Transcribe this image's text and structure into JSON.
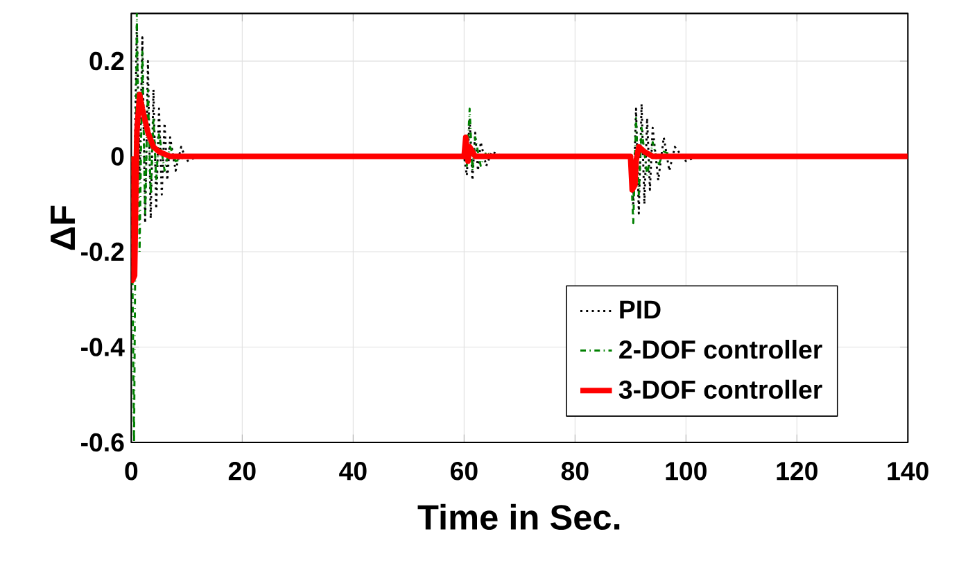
{
  "chart_data": {
    "type": "line",
    "xlabel": "Time in Sec.",
    "ylabel": "ΔF",
    "xlim": [
      0,
      140
    ],
    "ylim": [
      -0.6,
      0.3
    ],
    "xticks": [
      0,
      20,
      40,
      60,
      80,
      100,
      120,
      140
    ],
    "yticks": [
      -0.6,
      -0.4,
      -0.2,
      0,
      0.2
    ],
    "grid": true,
    "legend": "bottom right",
    "series": [
      {
        "name": "PID",
        "color": "#000000",
        "line_style": "dotted",
        "x": [
          0,
          0.5,
          1,
          1.5,
          2,
          2.5,
          3,
          3.5,
          4,
          4.5,
          5,
          5.5,
          6,
          6.5,
          7,
          8,
          9,
          10,
          12,
          60,
          60.5,
          61,
          61.5,
          62,
          62.5,
          63,
          64,
          65,
          67,
          90,
          90.5,
          91,
          91.5,
          92,
          92.5,
          93,
          93.5,
          94,
          95,
          96,
          97,
          98,
          100,
          102,
          140
        ],
        "values": [
          0,
          -0.1,
          0.28,
          -0.05,
          0.25,
          -0.14,
          0.2,
          -0.13,
          0.14,
          -0.11,
          0.1,
          -0.08,
          0.07,
          -0.05,
          0.04,
          -0.03,
          0.02,
          -0.01,
          0,
          0,
          -0.04,
          0.08,
          -0.05,
          0.05,
          -0.03,
          0.03,
          -0.02,
          0.01,
          0,
          0,
          -0.1,
          0.1,
          -0.12,
          0.11,
          -0.1,
          0.08,
          -0.07,
          0.06,
          -0.05,
          0.04,
          -0.03,
          0.02,
          -0.01,
          0,
          0
        ]
      },
      {
        "name": "2-DOF controller",
        "color": "#008000",
        "line_style": "dashdot",
        "x": [
          0,
          0.5,
          1,
          1.5,
          2,
          2.5,
          3,
          3.5,
          4,
          4.5,
          5,
          6,
          7,
          8,
          10,
          60,
          60.5,
          61,
          61.5,
          62,
          63,
          64,
          65,
          90,
          90.5,
          91,
          91.5,
          92,
          93,
          94,
          95,
          96,
          98,
          140
        ],
        "values": [
          0,
          -0.6,
          0.3,
          -0.2,
          0.22,
          -0.12,
          0.14,
          -0.08,
          0.08,
          -0.05,
          0.05,
          -0.03,
          0.02,
          -0.01,
          0,
          0,
          -0.02,
          0.1,
          -0.03,
          0.04,
          -0.02,
          0.01,
          0,
          0,
          -0.14,
          0.08,
          -0.08,
          0.06,
          -0.04,
          0.03,
          -0.02,
          0.01,
          0,
          0
        ]
      },
      {
        "name": "3-DOF controller",
        "color": "#ff0000",
        "line_style": "solid",
        "x": [
          0,
          0.2,
          0.6,
          1,
          1.5,
          2,
          3,
          4,
          5,
          7,
          60,
          60.3,
          60.7,
          61,
          62,
          90,
          90.3,
          90.8,
          91,
          91.5,
          92.5,
          94,
          140
        ],
        "values": [
          0,
          -0.26,
          -0.25,
          0.05,
          0.13,
          0.1,
          0.05,
          0.02,
          0.01,
          0,
          0,
          0.04,
          -0.01,
          0.02,
          0,
          0,
          -0.07,
          -0.06,
          -0.01,
          0.02,
          0.01,
          0,
          0
        ]
      }
    ]
  }
}
